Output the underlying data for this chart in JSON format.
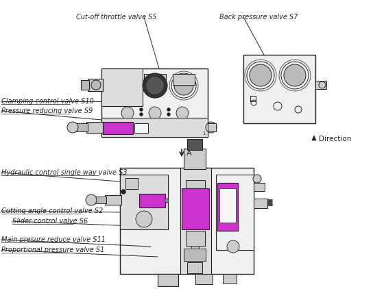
{
  "bg_color": "#ffffff",
  "lc": "#222222",
  "mc": "#cc33cc",
  "mc2": "#dd55dd",
  "gc": "#dddddd",
  "gc2": "#cccccc",
  "gc3": "#bbbbbb",
  "fs_label": 7,
  "fs_small": 6,
  "labels": {
    "cut_off": "Cut-off throttle valve S5",
    "back_pressure": "Back pressure valve S7",
    "clamping": "Clamping control valve S10",
    "pressure_red": "Pressure reducing valve S9",
    "hydraulic": "Hydraulic control single way valve S3",
    "cutting_angle": "Cutting angle control valve S2",
    "slider": "Slider control valve S6",
    "main_pressure": "Main presure reduce valve S11",
    "proportional": "Proportional pressure valve S1",
    "direction": "Direction",
    "arrow_a": "A"
  },
  "figsize": [
    5.44,
    4.22
  ],
  "dpi": 100
}
